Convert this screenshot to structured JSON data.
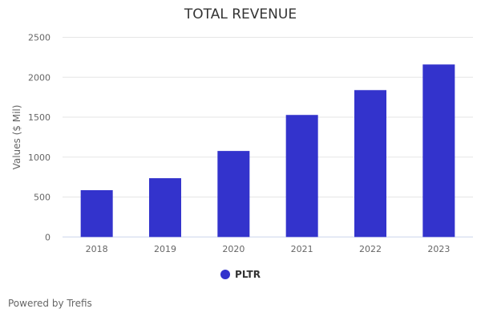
{
  "chart_data": {
    "type": "bar",
    "title": "TOTAL REVENUE",
    "xlabel": "",
    "ylabel": "Values ($ Mil)",
    "categories": [
      "2018",
      "2019",
      "2020",
      "2021",
      "2022",
      "2023"
    ],
    "series": [
      {
        "name": "PLTR",
        "values": [
          586,
          736,
          1077,
          1528,
          1839,
          2160
        ],
        "color": "#3333cc"
      }
    ],
    "ylim": [
      0,
      2500
    ],
    "yticks": [
      0,
      500,
      1000,
      1500,
      2000,
      2500
    ],
    "grid": true,
    "legend": "bottom-center"
  },
  "credit": "Powered by Trefis"
}
